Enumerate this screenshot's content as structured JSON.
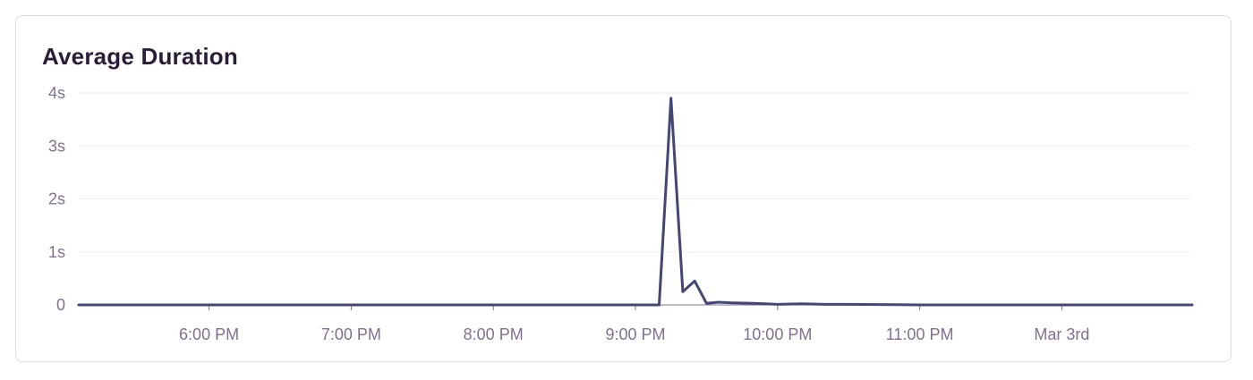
{
  "panel": {
    "title": "Average Duration"
  },
  "chart_data": {
    "type": "line",
    "title": "Average Duration",
    "xlabel": "",
    "ylabel": "",
    "y_unit": "s",
    "ylim": [
      0,
      4
    ],
    "y_ticks": [
      {
        "value": 0,
        "label": "0"
      },
      {
        "value": 1,
        "label": "1s"
      },
      {
        "value": 2,
        "label": "2s"
      },
      {
        "value": 3,
        "label": "3s"
      },
      {
        "value": 4,
        "label": "4s"
      }
    ],
    "x_ticks": [
      {
        "value": "18:00",
        "label": "6:00 PM"
      },
      {
        "value": "19:00",
        "label": "7:00 PM"
      },
      {
        "value": "20:00",
        "label": "8:00 PM"
      },
      {
        "value": "21:00",
        "label": "9:00 PM"
      },
      {
        "value": "22:00",
        "label": "10:00 PM"
      },
      {
        "value": "23:00",
        "label": "11:00 PM"
      },
      {
        "value": "24:00",
        "label": "Mar 3rd"
      }
    ],
    "xlim": [
      "17:05",
      "24:55"
    ],
    "grid": true,
    "legend": "none",
    "colors": {
      "line": "#444674",
      "grid": "#f1eef4",
      "axis": "#80708f",
      "title": "#2b1d38"
    },
    "series": [
      {
        "x": [
          "17:05",
          "18:00",
          "19:00",
          "20:00",
          "21:00",
          "21:10",
          "21:15",
          "21:20",
          "21:25",
          "21:30",
          "21:35",
          "21:40",
          "21:50",
          "22:00",
          "22:10",
          "22:20",
          "22:30",
          "23:00",
          "23:30",
          "24:00",
          "24:30",
          "24:55"
        ],
        "y": [
          0,
          0,
          0,
          0,
          0,
          0,
          3.9,
          0.25,
          0.45,
          0.03,
          0.05,
          0.04,
          0.03,
          0.01,
          0.02,
          0.01,
          0.01,
          0,
          0,
          0,
          0,
          0
        ]
      }
    ]
  }
}
